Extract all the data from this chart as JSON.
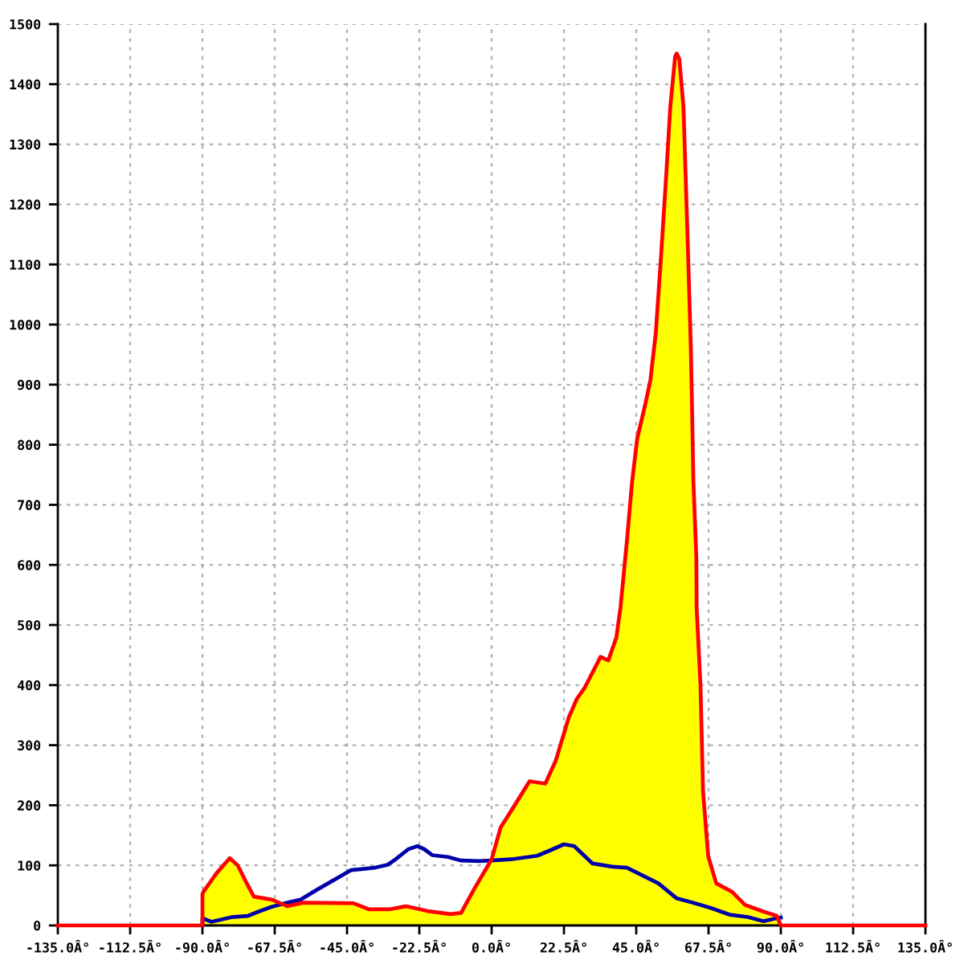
{
  "chart_data": {
    "type": "line",
    "xlim": [
      -135,
      135
    ],
    "xticks": [
      {
        "value": -135,
        "label": "-135.0Â°"
      },
      {
        "value": -112.5,
        "label": "-112.5Â°"
      },
      {
        "value": -90,
        "label": "-90.0Â°"
      },
      {
        "value": -67.5,
        "label": "-67.5Â°"
      },
      {
        "value": -45,
        "label": "-45.0Â°"
      },
      {
        "value": -22.5,
        "label": "-22.5Â°"
      },
      {
        "value": 0,
        "label": "0.0Â°"
      },
      {
        "value": 22.5,
        "label": "22.5Â°"
      },
      {
        "value": 45,
        "label": "45.0Â°"
      },
      {
        "value": 67.5,
        "label": "67.5Â°"
      },
      {
        "value": 90,
        "label": "90.0Â°"
      },
      {
        "value": 112.5,
        "label": "112.5Â°"
      },
      {
        "value": 135,
        "label": "135.0Â°"
      }
    ],
    "ylim": [
      0,
      1500
    ],
    "yticks": [
      0,
      100,
      200,
      300,
      400,
      500,
      600,
      700,
      800,
      900,
      1000,
      1100,
      1200,
      1300,
      1400,
      1500
    ],
    "grid": true,
    "marker": "none",
    "line_style": "solid",
    "series": [
      {
        "type": "area",
        "color": "#ffff00",
        "x": [
          -90,
          -90,
          -89.7,
          -85.6,
          -81.5,
          -79,
          -76.6,
          -74,
          -68.4,
          -63.5,
          -58.6,
          -43,
          -38.3,
          -31.6,
          -26.7,
          -20,
          -12.8,
          -9.5,
          -5.4,
          0,
          2.8,
          6,
          11.8,
          16.7,
          20,
          24,
          26.5,
          29,
          33.9,
          36.3,
          38.8,
          40.1,
          42.1,
          43.7,
          45.3,
          47.8,
          49.4,
          51.1,
          52.7,
          54.3,
          55.6,
          57.1,
          57.6,
          58.4,
          59.7,
          60.9,
          62,
          62.8,
          63.7,
          63.8,
          65,
          65.8,
          67.4,
          69.9,
          74.8,
          78.9,
          84.6,
          88.7,
          90
        ],
        "values": [
          0,
          52,
          56,
          87,
          112,
          100,
          74,
          48,
          43,
          32,
          38,
          37,
          27,
          27,
          32,
          24,
          19,
          21,
          61,
          110,
          163,
          190,
          240,
          236,
          275,
          346,
          377,
          396,
          447,
          441,
          479,
          529,
          640,
          738,
          810,
          867,
          907,
          987,
          1112,
          1246,
          1362,
          1446,
          1451,
          1442,
          1362,
          1158,
          961,
          738,
          613,
          529,
          399,
          222,
          115,
          70,
          56,
          34,
          23,
          16,
          0
        ]
      },
      {
        "color": "#0000aa",
        "x": [
          -90,
          -90,
          -87.2,
          -80.7,
          -75.8,
          -72.5,
          -68.4,
          -63.5,
          -59.4,
          -54.5,
          -49.6,
          -43.8,
          -39.8,
          -36.5,
          -32.4,
          -29.9,
          -25.9,
          -23.1,
          -21,
          -18.5,
          -13.6,
          -9.5,
          -3.8,
          0,
          6,
          14.2,
          19.1,
          22.5,
          25.7,
          31.4,
          37.2,
          42.1,
          47,
          51.9,
          57.6,
          62.5,
          68.2,
          74,
          79.7,
          84.6,
          88.7,
          90
        ],
        "values": [
          0,
          12,
          6,
          14,
          16,
          23,
          31,
          38,
          43,
          59,
          74,
          92,
          94,
          96,
          101,
          110,
          127,
          132,
          127,
          117,
          114,
          108,
          107,
          108,
          110,
          116,
          127,
          135,
          132,
          103,
          98,
          96,
          83,
          70,
          45,
          38,
          29,
          18,
          14,
          7,
          12,
          13
        ]
      },
      {
        "color": "#ff0000",
        "x": [
          -135,
          -90,
          -90,
          -89.7,
          -85.6,
          -81.5,
          -79,
          -76.6,
          -74,
          -68.4,
          -63.5,
          -58.6,
          -43,
          -38.3,
          -31.6,
          -26.7,
          -20,
          -12.8,
          -9.5,
          -5.4,
          0,
          2.8,
          6,
          11.8,
          16.7,
          20,
          24,
          26.5,
          29,
          33.9,
          36.3,
          38.8,
          40.1,
          42.1,
          43.7,
          45.3,
          47.8,
          49.4,
          51.1,
          52.7,
          54.3,
          55.6,
          57.1,
          57.6,
          58.4,
          59.7,
          60.9,
          62,
          62.8,
          63.7,
          63.8,
          65,
          65.8,
          67.4,
          69.9,
          74.8,
          78.9,
          84.6,
          88.7,
          90,
          135
        ],
        "values": [
          0,
          0,
          52,
          56,
          87,
          112,
          100,
          74,
          48,
          43,
          32,
          38,
          37,
          27,
          27,
          32,
          24,
          19,
          21,
          61,
          110,
          163,
          190,
          240,
          236,
          275,
          346,
          377,
          396,
          447,
          441,
          479,
          529,
          640,
          738,
          810,
          867,
          907,
          987,
          1112,
          1246,
          1362,
          1446,
          1451,
          1442,
          1362,
          1158,
          961,
          738,
          613,
          529,
          399,
          222,
          115,
          70,
          56,
          34,
          23,
          16,
          0,
          0
        ]
      }
    ]
  }
}
